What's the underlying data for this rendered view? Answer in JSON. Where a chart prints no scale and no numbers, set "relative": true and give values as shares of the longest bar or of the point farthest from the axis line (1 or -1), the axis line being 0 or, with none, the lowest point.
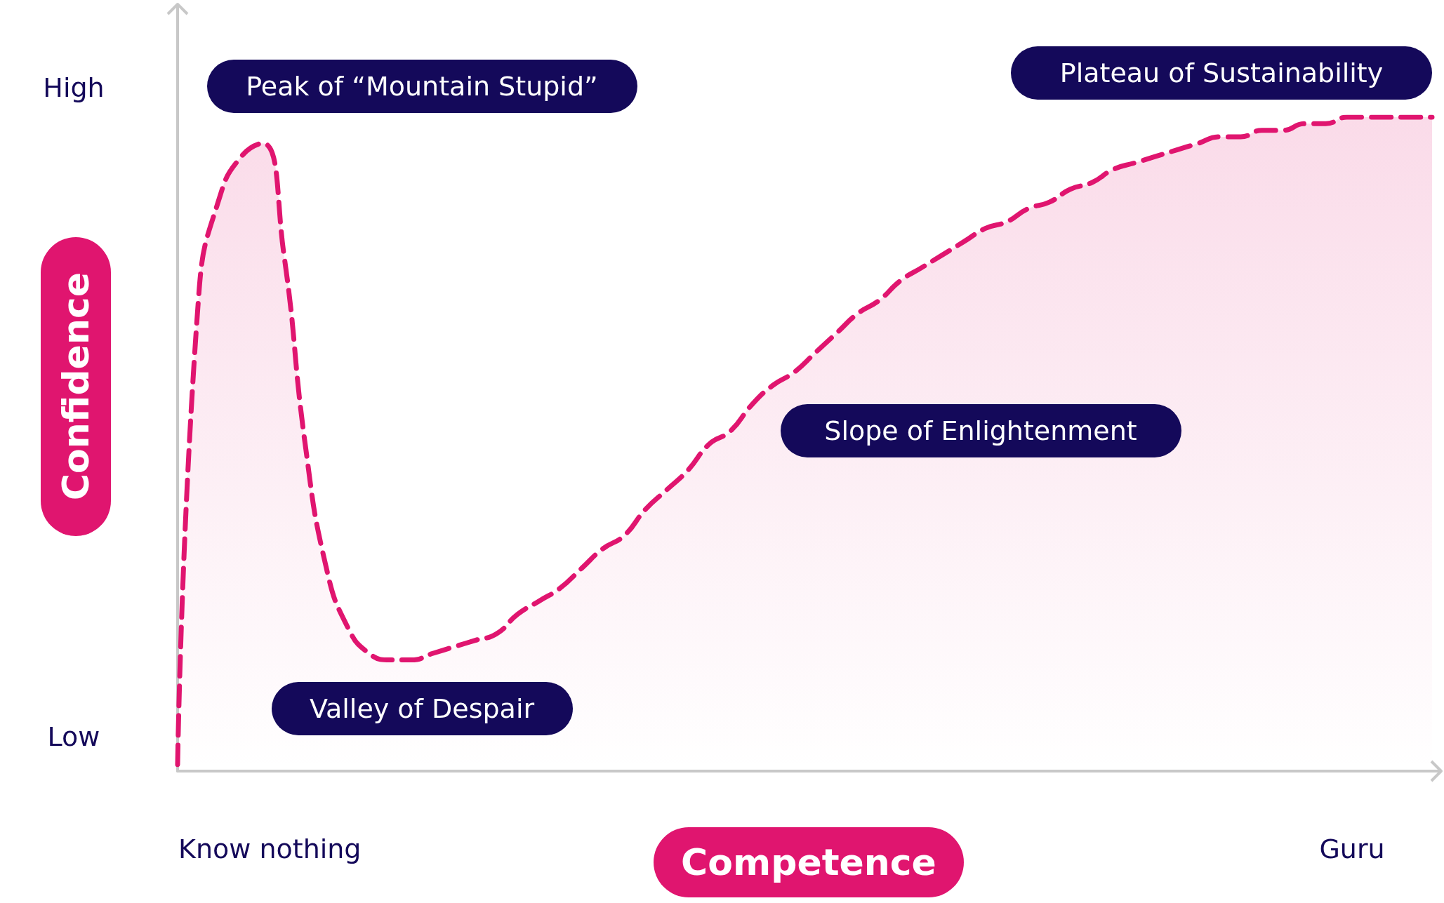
{
  "chart_data": {
    "type": "area",
    "relative": true,
    "xlabel": "Competence",
    "ylabel": "Confidence",
    "annotations": [
      "Peak of “Mountain Stupid”",
      "Valley of Despair",
      "Slope of Enlightenment",
      "Plateau of Sustainability",
      "High",
      "Low",
      "Know nothing",
      "Guru"
    ],
    "categories": [
      null,
      null,
      null,
      null,
      null,
      null,
      null,
      null,
      null,
      null,
      null,
      null,
      null,
      null,
      null,
      null,
      null,
      null,
      null,
      null,
      null,
      null,
      null,
      null,
      null,
      null,
      null,
      null,
      null,
      null,
      null,
      null,
      null,
      null,
      null,
      null,
      null,
      null,
      null,
      null,
      null,
      null,
      null,
      null,
      null,
      null,
      null,
      null,
      null,
      null,
      null,
      null,
      null,
      null,
      null,
      null,
      null,
      null,
      null,
      null
    ],
    "series": [
      {
        "color": "#e0156f",
        "values": [
          0.01,
          0.73,
          0.88,
          0.94,
          0.96,
          0.79,
          0.5,
          0.31,
          0.22,
          0.18,
          0.17,
          0.17,
          0.18,
          0.19,
          0.2,
          0.21,
          0.24,
          0.26,
          0.28,
          0.31,
          0.34,
          0.36,
          0.4,
          0.43,
          0.46,
          0.5,
          0.52,
          0.56,
          0.59,
          0.61,
          0.64,
          0.67,
          0.7,
          0.72,
          0.75,
          0.77,
          0.79,
          0.81,
          0.83,
          0.84,
          0.86,
          0.87,
          0.89,
          0.9,
          0.92,
          0.93,
          0.94,
          0.95,
          0.96,
          0.97,
          0.97,
          0.98,
          0.98,
          0.99,
          0.99,
          1.0,
          1.0,
          1.0,
          1.0,
          1.0
        ]
      }
    ],
    "line_style": "dashed",
    "marker": "none",
    "grid": false
  }
}
